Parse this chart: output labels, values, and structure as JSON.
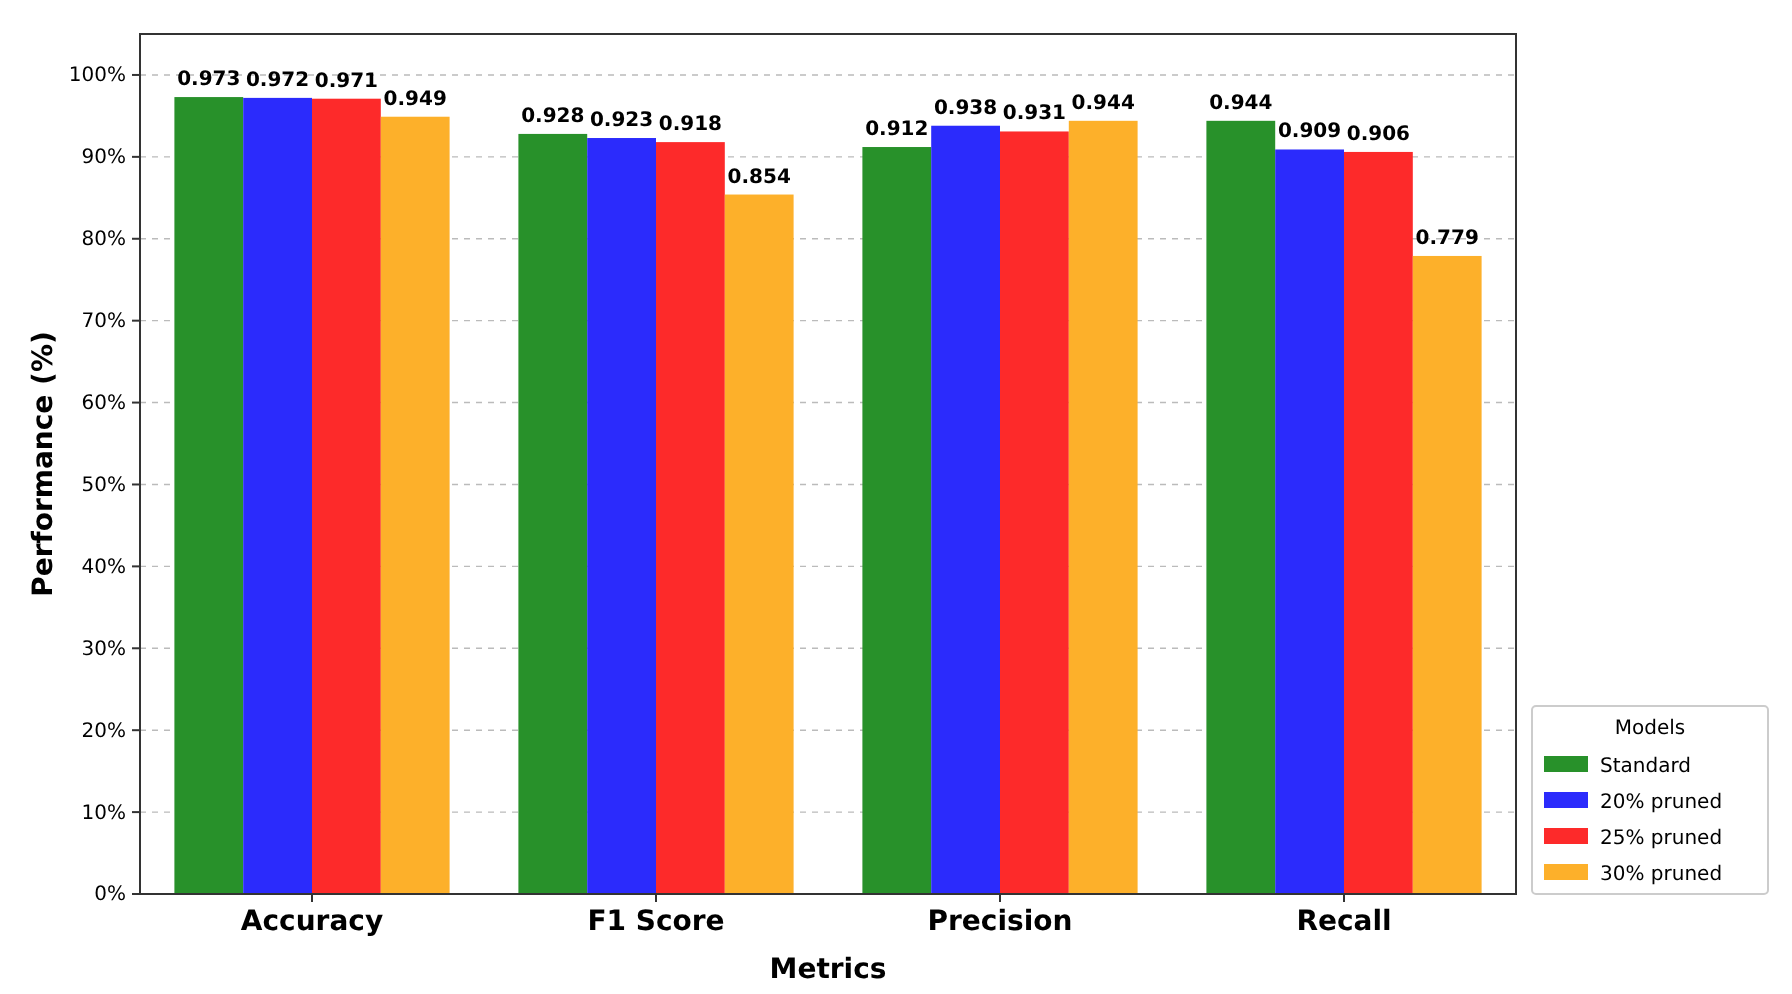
{
  "chart_data": {
    "type": "bar",
    "xlabel": "Metrics",
    "ylabel": "Performance (%)",
    "legend_title": "Models",
    "categories": [
      "Accuracy",
      "F1 Score",
      "Precision",
      "Recall"
    ],
    "series": [
      {
        "name": "Standard",
        "color": "#28912a",
        "values": [
          0.973,
          0.928,
          0.912,
          0.944
        ]
      },
      {
        "name": "20% pruned",
        "color": "#2b2bfc",
        "values": [
          0.972,
          0.923,
          0.938,
          0.909
        ]
      },
      {
        "name": "25% pruned",
        "color": "#fd2a2a",
        "values": [
          0.971,
          0.918,
          0.931,
          0.906
        ]
      },
      {
        "name": "30% pruned",
        "color": "#fdb02a",
        "values": [
          0.949,
          0.854,
          0.944,
          0.779
        ]
      }
    ],
    "ylim": [
      0,
      1.05
    ],
    "yticks": [
      {
        "value": 0,
        "label": "0%"
      },
      {
        "value": 0.1,
        "label": "10%"
      },
      {
        "value": 0.2,
        "label": "20%"
      },
      {
        "value": 0.3,
        "label": "30%"
      },
      {
        "value": 0.4,
        "label": "40%"
      },
      {
        "value": 0.5,
        "label": "50%"
      },
      {
        "value": 0.6,
        "label": "60%"
      },
      {
        "value": 0.7,
        "label": "70%"
      },
      {
        "value": 0.8,
        "label": "80%"
      },
      {
        "value": 0.9,
        "label": "90%"
      },
      {
        "value": 1,
        "label": "100%"
      }
    ],
    "grid": "y",
    "legend": "bottom right",
    "data_labels": true
  }
}
